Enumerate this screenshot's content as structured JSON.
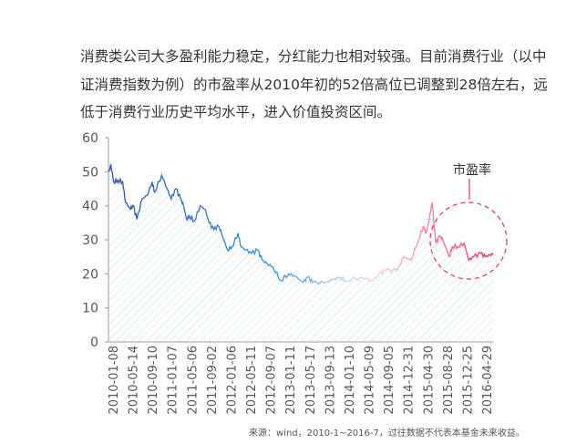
{
  "intro_text": "消费类公司大多盈利能力稳定，分红能力也相对较强。目前消费行业（以中证消费指数为例）的市盈率从2010年初的52倍高位已调整到28倍左右，远低于消费行业历史平均水平，进入价值投资区间。",
  "source_note": "来源：wind，2010-1~2016-7，过往数据不代表本基金未来收益。",
  "chart_data": {
    "type": "area",
    "title": "",
    "xlabel": "",
    "ylabel": "",
    "ylim": [
      0,
      60
    ],
    "xlim": [
      2010.0,
      2016.5
    ],
    "y_ticks": [
      "0",
      "10",
      "20",
      "30",
      "40",
      "50",
      "60"
    ],
    "x_tick_labels": [
      "2010-01-08",
      "2010-05-14",
      "2010-09-10",
      "2011-01-07",
      "2011-05-06",
      "2011-09-02",
      "2012-01-06",
      "2012-05-11",
      "2012-09-07",
      "2013-01-11",
      "2013-05-17",
      "2013-09-13",
      "2014-01-10",
      "2014-05-09",
      "2014-09-05",
      "2014-12-31",
      "2015-04-30",
      "2015-08-28",
      "2015-12-25",
      "2016-04-29"
    ],
    "annotation": "市盈率",
    "series": [
      {
        "name": "市盈率",
        "points": [
          [
            2010.01,
            50
          ],
          [
            2010.04,
            52
          ],
          [
            2010.09,
            47
          ],
          [
            2010.16,
            47.5
          ],
          [
            2010.24,
            47
          ],
          [
            2010.29,
            41
          ],
          [
            2010.37,
            39
          ],
          [
            2010.42,
            40
          ],
          [
            2010.48,
            36
          ],
          [
            2010.57,
            42
          ],
          [
            2010.65,
            43
          ],
          [
            2010.74,
            47
          ],
          [
            2010.78,
            44
          ],
          [
            2010.9,
            49
          ],
          [
            2010.99,
            45
          ],
          [
            2011.06,
            42
          ],
          [
            2011.14,
            45
          ],
          [
            2011.22,
            42
          ],
          [
            2011.27,
            40
          ],
          [
            2011.32,
            36
          ],
          [
            2011.37,
            37
          ],
          [
            2011.45,
            35.5
          ],
          [
            2011.55,
            40
          ],
          [
            2011.63,
            39
          ],
          [
            2011.7,
            35
          ],
          [
            2011.78,
            33
          ],
          [
            2011.86,
            34
          ],
          [
            2011.91,
            32
          ],
          [
            2012.01,
            27
          ],
          [
            2012.09,
            28
          ],
          [
            2012.19,
            32
          ],
          [
            2012.24,
            28
          ],
          [
            2012.32,
            27
          ],
          [
            2012.42,
            26
          ],
          [
            2012.52,
            27
          ],
          [
            2012.6,
            24
          ],
          [
            2012.68,
            23
          ],
          [
            2012.78,
            22
          ],
          [
            2012.91,
            18
          ],
          [
            2013.04,
            20
          ],
          [
            2013.14,
            19.5
          ],
          [
            2013.29,
            17.5
          ],
          [
            2013.37,
            19
          ],
          [
            2013.45,
            17.5
          ],
          [
            2013.65,
            17.3
          ],
          [
            2013.81,
            18.5
          ],
          [
            2013.91,
            19
          ],
          [
            2014.01,
            18
          ],
          [
            2014.27,
            19
          ],
          [
            2014.47,
            18
          ],
          [
            2014.58,
            20
          ],
          [
            2014.68,
            21
          ],
          [
            2014.88,
            21
          ],
          [
            2014.99,
            25
          ],
          [
            2015.11,
            24
          ],
          [
            2015.24,
            30
          ],
          [
            2015.32,
            34
          ],
          [
            2015.37,
            32
          ],
          [
            2015.42,
            36
          ],
          [
            2015.47,
            41
          ],
          [
            2015.53,
            29
          ],
          [
            2015.6,
            31
          ],
          [
            2015.65,
            30
          ],
          [
            2015.76,
            25
          ],
          [
            2015.81,
            28
          ],
          [
            2015.91,
            28
          ],
          [
            2016.01,
            29
          ],
          [
            2016.09,
            24
          ],
          [
            2016.17,
            25
          ],
          [
            2016.29,
            26
          ],
          [
            2016.37,
            25
          ],
          [
            2016.45,
            25.5
          ],
          [
            2016.5,
            26
          ]
        ]
      }
    ]
  },
  "colors": {
    "start": "#2a4fa8",
    "mid": "#3a9ae0",
    "pale": "#d8e4ee",
    "pink": "#f5a8b8",
    "end": "#e8325a",
    "annotation": "#e8325a",
    "axis": "#555"
  }
}
